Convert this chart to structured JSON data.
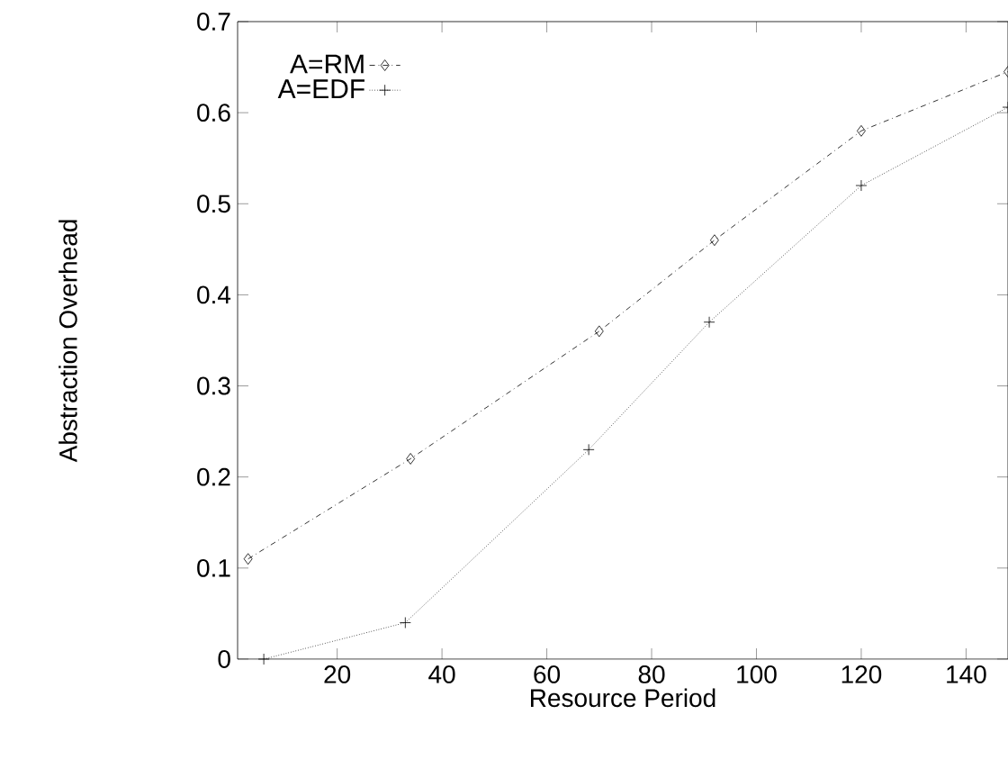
{
  "chart_data": {
    "type": "line",
    "xlabel": "Resource Period",
    "ylabel": "Abstraction Overhead",
    "xlim": [
      1,
      148
    ],
    "ylim": [
      0,
      0.7
    ],
    "xticks": [
      20,
      40,
      60,
      80,
      100,
      120,
      140
    ],
    "yticks": [
      0,
      0.1,
      0.2,
      0.3,
      0.4,
      0.5,
      0.6,
      0.7
    ],
    "legend": "top left",
    "grid": false,
    "series": [
      {
        "name": "A=RM",
        "color": "#000000",
        "marker": "diamond",
        "line_style": "dashdot",
        "x": [
          3,
          34,
          70,
          92,
          120,
          148
        ],
        "values": [
          0.11,
          0.22,
          0.36,
          0.46,
          0.58,
          0.645
        ]
      },
      {
        "name": "A=EDF",
        "color": "#000000",
        "marker": "cross",
        "line_style": "dotted",
        "x": [
          6,
          33,
          68,
          91,
          120,
          148
        ],
        "values": [
          0,
          0.04,
          0.23,
          0.37,
          0.52,
          0.606
        ]
      }
    ]
  }
}
